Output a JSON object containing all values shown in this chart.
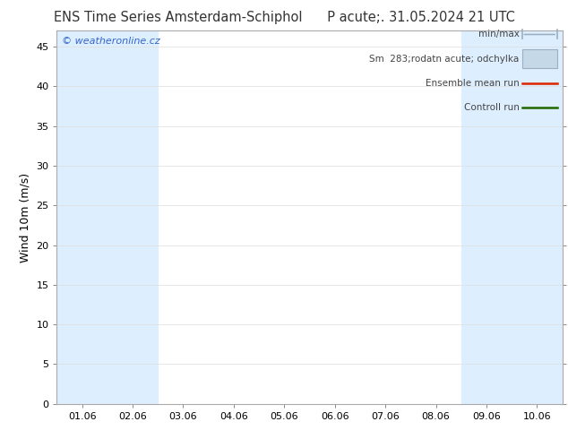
{
  "title": "ENS Time Series Amsterdam-Schiphol      P acute;. 31.05.2024 21 UTC",
  "ylabel": "Wind 10m (m/s)",
  "ylim": [
    0,
    47
  ],
  "yticks": [
    0,
    5,
    10,
    15,
    20,
    25,
    30,
    35,
    40,
    45
  ],
  "x_labels": [
    "01.06",
    "02.06",
    "03.06",
    "04.06",
    "05.06",
    "06.06",
    "07.06",
    "08.06",
    "09.06",
    "10.06"
  ],
  "x_positions": [
    0,
    1,
    2,
    3,
    4,
    5,
    6,
    7,
    8,
    9
  ],
  "shaded_bands": [
    {
      "xmin": -0.5,
      "xmax": 0.5
    },
    {
      "xmin": 0.5,
      "xmax": 1.5
    },
    {
      "xmin": 7.5,
      "xmax": 8.5
    },
    {
      "xmin": 8.5,
      "xmax": 9.5
    },
    {
      "xmin": 9.5,
      "xmax": 9.9
    }
  ],
  "band_color": "#ddeeff",
  "background_color": "#ffffff",
  "watermark": "© weatheronline.cz",
  "watermark_color": "#3366cc",
  "minmax_color": "#9ab0c0",
  "band_legend_color": "#c5d8e8",
  "ensemble_color": "#dd2200",
  "control_color": "#226600",
  "title_fontsize": 10.5,
  "axis_fontsize": 9,
  "tick_fontsize": 8,
  "fig_width": 6.34,
  "fig_height": 4.9,
  "dpi": 100
}
